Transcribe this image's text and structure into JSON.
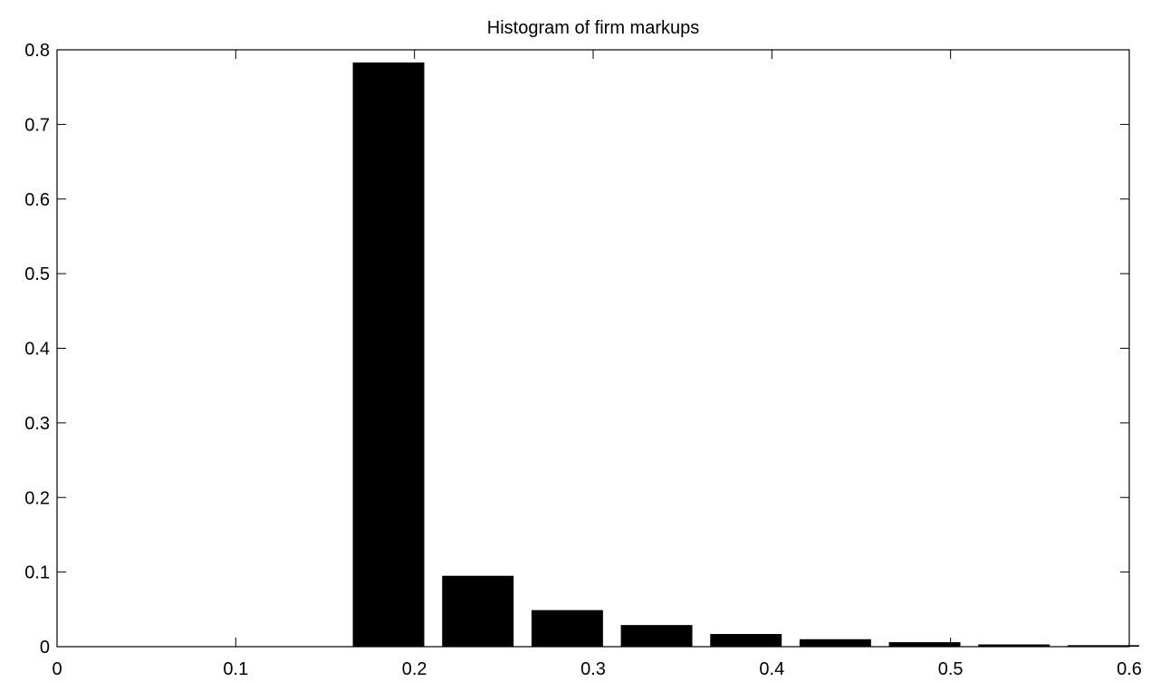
{
  "chart_data": {
    "type": "bar",
    "title": "Histogram of firm markups",
    "xlabel": "",
    "ylabel": "",
    "xlim": [
      0,
      0.6
    ],
    "ylim": [
      0,
      0.8
    ],
    "bar_width": 0.04,
    "bar_color": "#000000",
    "grid": false,
    "x_ticks": [
      "0",
      "0.1",
      "0.2",
      "0.3",
      "0.4",
      "0.5",
      "0.6"
    ],
    "y_ticks": [
      "0",
      "0.1",
      "0.2",
      "0.3",
      "0.4",
      "0.5",
      "0.6",
      "0.7",
      "0.8"
    ],
    "bins": [
      0.1355,
      0.1855,
      0.2355,
      0.2855,
      0.3355,
      0.3855,
      0.4355,
      0.4855,
      0.5355,
      0.5855
    ],
    "values": [
      0.0,
      0.783,
      0.095,
      0.049,
      0.029,
      0.017,
      0.01,
      0.006,
      0.003,
      0.002
    ]
  }
}
